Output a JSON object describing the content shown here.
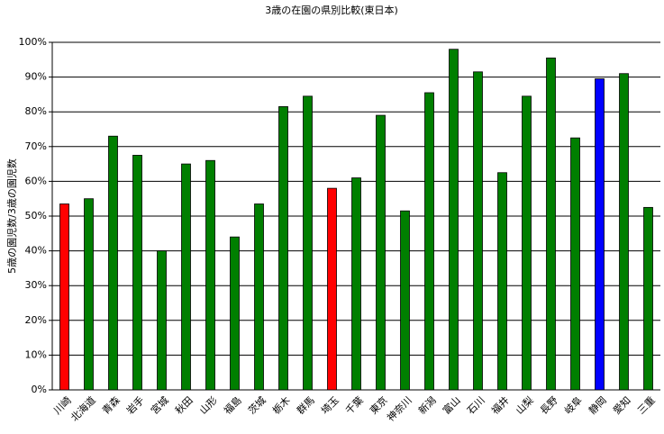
{
  "chart_data": {
    "type": "bar",
    "title": "3歳の在園の県別比較(東日本)",
    "y_label": "5歳の園児数/3歳の園児数",
    "categories": [
      "川崎",
      "北海道",
      "青森",
      "岩手",
      "宮城",
      "秋田",
      "山形",
      "福島",
      "茨城",
      "栃木",
      "群馬",
      "埼玉",
      "千葉",
      "東京",
      "神奈川",
      "新潟",
      "富山",
      "石川",
      "福井",
      "山梨",
      "長野",
      "岐阜",
      "静岡",
      "愛知",
      "三重"
    ],
    "values": [
      53.5,
      55,
      73,
      67.5,
      40,
      65,
      66,
      44,
      53.5,
      81.5,
      84.5,
      58,
      61,
      79,
      51.5,
      85.5,
      98,
      91.5,
      62.5,
      84.5,
      95.5,
      72.5,
      89.5,
      91,
      52.5
    ],
    "colors": [
      "#ff0000",
      "#007f00",
      "#007f00",
      "#007f00",
      "#007f00",
      "#007f00",
      "#007f00",
      "#007f00",
      "#007f00",
      "#007f00",
      "#007f00",
      "#ff0000",
      "#007f00",
      "#007f00",
      "#007f00",
      "#007f00",
      "#007f00",
      "#007f00",
      "#007f00",
      "#007f00",
      "#007f00",
      "#007f00",
      "#0000ff",
      "#007f00",
      "#007f00"
    ],
    "ylim": [
      0,
      100
    ],
    "yticks": [
      {
        "value": 0,
        "label": "0%"
      },
      {
        "value": 10,
        "label": "10%"
      },
      {
        "value": 20,
        "label": "20%"
      },
      {
        "value": 30,
        "label": "30%"
      },
      {
        "value": 40,
        "label": "40%"
      },
      {
        "value": 50,
        "label": "50%"
      },
      {
        "value": 60,
        "label": "60%"
      },
      {
        "value": 70,
        "label": "70%"
      },
      {
        "value": 80,
        "label": "80%"
      },
      {
        "value": 90,
        "label": "90%"
      },
      {
        "value": 100,
        "label": "100%"
      }
    ],
    "grid": true
  }
}
